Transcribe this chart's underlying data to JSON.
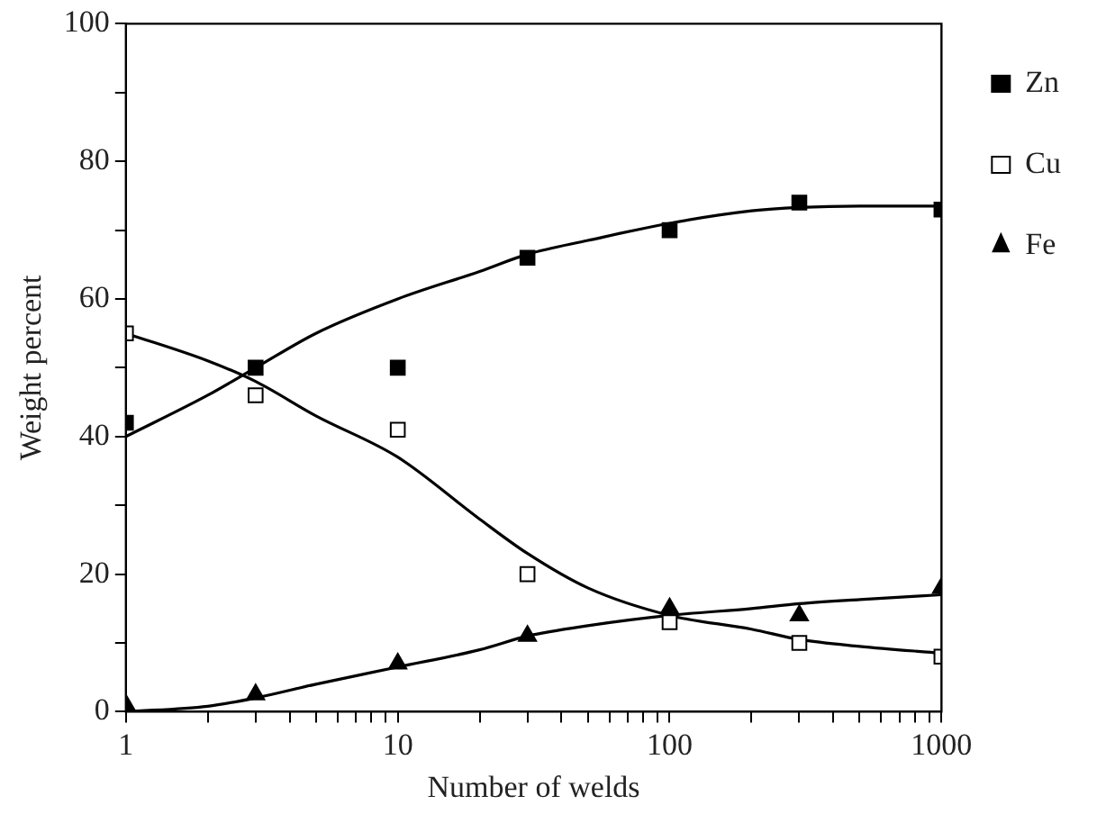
{
  "chart_data": {
    "type": "scatter",
    "xlabel": "Number of welds",
    "ylabel": "Weight percent",
    "log": "x",
    "xlim": [
      1,
      1000
    ],
    "ylim": [
      0,
      100
    ],
    "xticks": [
      1,
      {
        "value": 2,
        "label": null
      },
      {
        "value": 3,
        "label": null
      },
      {
        "value": 4,
        "label": null
      },
      {
        "value": 5,
        "label": null
      },
      {
        "value": 6,
        "label": null
      },
      {
        "value": 7,
        "label": null
      },
      {
        "value": 8,
        "label": null
      },
      {
        "value": 9,
        "label": null
      },
      10,
      {
        "value": 20,
        "label": null
      },
      {
        "value": 30,
        "label": null
      },
      {
        "value": 40,
        "label": null
      },
      {
        "value": 50,
        "label": null
      },
      {
        "value": 60,
        "label": null
      },
      {
        "value": 70,
        "label": null
      },
      {
        "value": 80,
        "label": null
      },
      {
        "value": 90,
        "label": null
      },
      100,
      {
        "value": 200,
        "label": null
      },
      {
        "value": 300,
        "label": null
      },
      {
        "value": 400,
        "label": null
      },
      {
        "value": 500,
        "label": null
      },
      {
        "value": 600,
        "label": null
      },
      {
        "value": 700,
        "label": null
      },
      {
        "value": 800,
        "label": null
      },
      {
        "value": 900,
        "label": null
      },
      1000
    ],
    "yticks": [
      0,
      {
        "value": 10,
        "label": null
      },
      20,
      {
        "value": 30,
        "label": null
      },
      40,
      {
        "value": 50,
        "label": null
      },
      60,
      {
        "value": 70,
        "label": null
      },
      80,
      {
        "value": 90,
        "label": null
      },
      100
    ],
    "grid": false,
    "legend": "top right",
    "series": [
      {
        "name": "Zn",
        "type": "scatter",
        "marker": "square",
        "color": "#000000",
        "x": [
          1,
          3,
          10,
          30,
          100,
          300,
          1000
        ],
        "values": [
          42,
          50,
          50,
          66,
          70,
          74,
          73
        ]
      },
      {
        "name": "Cu",
        "type": "scatter",
        "marker": "square",
        "color": "#ffffff",
        "x": [
          1,
          3,
          10,
          30,
          100,
          300,
          1000
        ],
        "values": [
          55,
          46,
          41,
          20,
          13,
          10,
          8
        ]
      },
      {
        "name": "Fe",
        "type": "scatter",
        "marker": "triangle",
        "color": "#000000",
        "x": [
          1,
          3,
          10,
          30,
          100,
          300,
          1000
        ],
        "values": [
          1,
          2.5,
          7,
          11,
          15,
          14,
          18
        ]
      },
      {
        "type": "line",
        "marker": "none",
        "color": "#000000",
        "x": [
          1,
          2,
          3,
          5,
          10,
          20,
          30,
          50,
          100,
          200,
          300,
          500,
          1000
        ],
        "values": [
          40,
          46,
          50,
          55,
          60,
          64,
          66.5,
          68.5,
          71,
          72.8,
          73.3,
          73.5,
          73.5
        ]
      },
      {
        "type": "line",
        "marker": "none",
        "color": "#000000",
        "x": [
          1,
          2,
          3,
          5,
          10,
          20,
          30,
          50,
          100,
          200,
          300,
          500,
          1000
        ],
        "values": [
          55,
          51,
          48,
          43,
          37,
          28,
          23,
          18,
          14,
          12,
          10.5,
          9.5,
          8.5
        ]
      },
      {
        "type": "line",
        "marker": "none",
        "color": "#000000",
        "x": [
          1,
          2,
          3,
          5,
          10,
          20,
          30,
          50,
          100,
          200,
          300,
          500,
          1000
        ],
        "values": [
          0,
          0.8,
          2,
          4,
          6.5,
          9,
          11,
          12.5,
          14,
          15,
          15.7,
          16.3,
          17
        ]
      }
    ]
  }
}
